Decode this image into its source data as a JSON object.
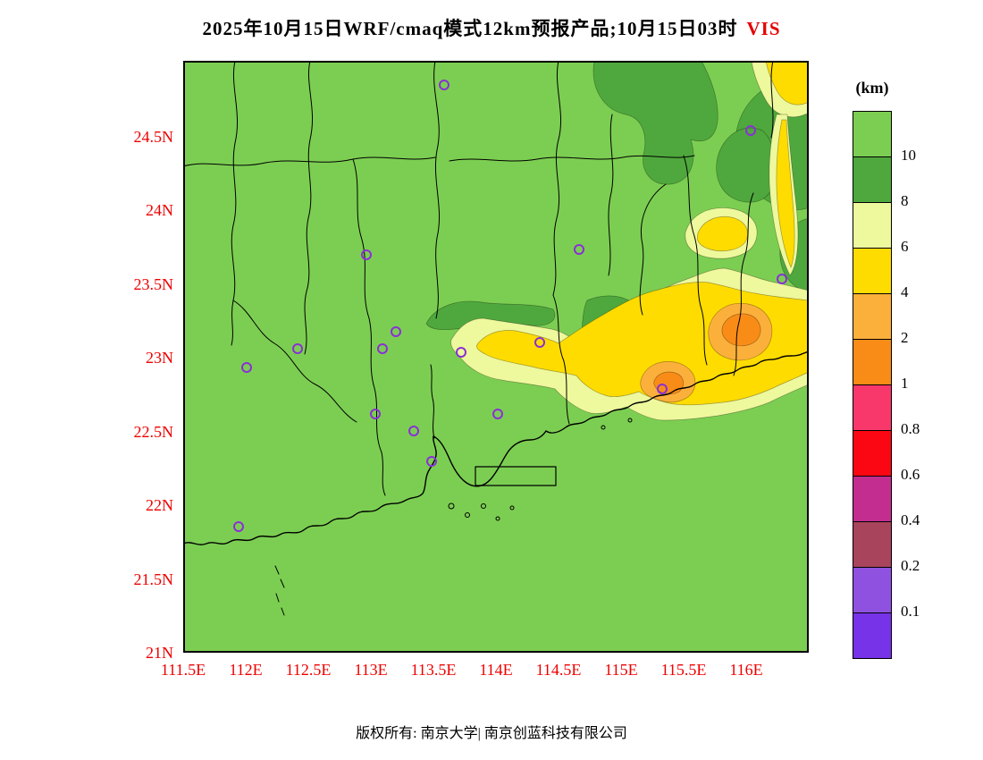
{
  "title": {
    "main": "2025年10月15日WRF/cmaq模式12km预报产品;10月15日03时",
    "variable": "VIS",
    "accent_color": "#E60000"
  },
  "legend": {
    "unit_label": "(km)",
    "tick_values": [
      "10",
      "8",
      "6",
      "4",
      "2",
      "1",
      "0.8",
      "0.6",
      "0.4",
      "0.2",
      "0.1"
    ],
    "colors": [
      "#7CCE52",
      "#4FA83D",
      "#EEF89C",
      "#FFDC00",
      "#FCB03C",
      "#F98C17",
      "#F8386B",
      "#FA0713",
      "#C42D90",
      "#A8445C",
      "#8F52E0",
      "#7733E8"
    ]
  },
  "map": {
    "base_color": "#7CCE52",
    "axis_color": "#EE0000",
    "marker_color": "#8B2FD6",
    "lat_labels": [
      "24.5N",
      "24N",
      "23.5N",
      "23N",
      "22.5N",
      "22N",
      "21.5N",
      "21N"
    ],
    "lon_labels": [
      "111.5E",
      "112E",
      "112.5E",
      "113E",
      "113.5E",
      "114E",
      "114.5E",
      "115E",
      "115.5E",
      "116E"
    ],
    "station_markers": [
      [
        292,
        27
      ],
      [
        635,
        78
      ],
      [
        205,
        217
      ],
      [
        443,
        211
      ],
      [
        670,
        244
      ],
      [
        238,
        303
      ],
      [
        128,
        322
      ],
      [
        223,
        322
      ],
      [
        71,
        343
      ],
      [
        311,
        326
      ],
      [
        399,
        315
      ],
      [
        536,
        367
      ],
      [
        352,
        395
      ],
      [
        215,
        395
      ],
      [
        258,
        414
      ],
      [
        278,
        448
      ],
      [
        62,
        521
      ]
    ]
  },
  "footer": {
    "copyright": "版权所有: 南京大学| 南京创蓝科技有限公司"
  }
}
